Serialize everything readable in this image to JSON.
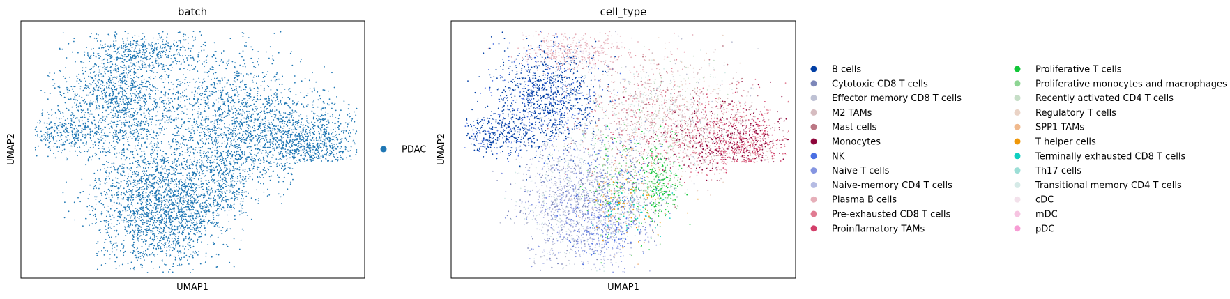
{
  "chart_data": [
    {
      "type": "scatter",
      "title": "batch",
      "xlabel": "UMAP1",
      "ylabel": "UMAP2",
      "xticks": false,
      "yticks": false,
      "legend": {
        "placement": "right",
        "entries": [
          {
            "name": "PDAC",
            "color": "#1f77b4"
          }
        ]
      }
    },
    {
      "type": "scatter",
      "title": "cell_type",
      "xlabel": "UMAP1",
      "ylabel": "UMAP2",
      "xticks": false,
      "yticks": false,
      "legend": {
        "placement": "right",
        "columns": 2,
        "entries": [
          {
            "name": "B cells",
            "color": "#023fa5"
          },
          {
            "name": "Cytotoxic CD8 T cells",
            "color": "#7d87b9"
          },
          {
            "name": "Effector memory CD8 T cells",
            "color": "#bec1d4"
          },
          {
            "name": "M2 TAMs",
            "color": "#d6bcc0"
          },
          {
            "name": "Mast cells",
            "color": "#bb7784"
          },
          {
            "name": "Monocytes",
            "color": "#8e063b"
          },
          {
            "name": "NK",
            "color": "#4a6fe3"
          },
          {
            "name": "Naive T cells",
            "color": "#8595e1"
          },
          {
            "name": "Naive-memory CD4 T cells",
            "color": "#b5bbe3"
          },
          {
            "name": "Plasma B cells",
            "color": "#e6afb9"
          },
          {
            "name": "Pre-exhausted CD8 T cells",
            "color": "#e07b91"
          },
          {
            "name": "Proinflamatory TAMs",
            "color": "#d33f6a"
          },
          {
            "name": "Proliferative T cells",
            "color": "#11c638"
          },
          {
            "name": "Proliferative monocytes and macrophages",
            "color": "#8dd593"
          },
          {
            "name": "Recently activated CD4 T cells",
            "color": "#c6dec7"
          },
          {
            "name": "Regulatory T cells",
            "color": "#ead3c6"
          },
          {
            "name": "SPP1 TAMs",
            "color": "#f0b98d"
          },
          {
            "name": "T helper cells",
            "color": "#ef9708"
          },
          {
            "name": "Terminally exhausted CD8 T cells",
            "color": "#0fcfc0"
          },
          {
            "name": "Th17 cells",
            "color": "#9cded6"
          },
          {
            "name": "Transitional memory CD4 T cells",
            "color": "#d5eae7"
          },
          {
            "name": "cDC",
            "color": "#f3e1eb"
          },
          {
            "name": "mDC",
            "color": "#f6c4e1"
          },
          {
            "name": "pDC",
            "color": "#f79cd4"
          }
        ]
      }
    }
  ]
}
